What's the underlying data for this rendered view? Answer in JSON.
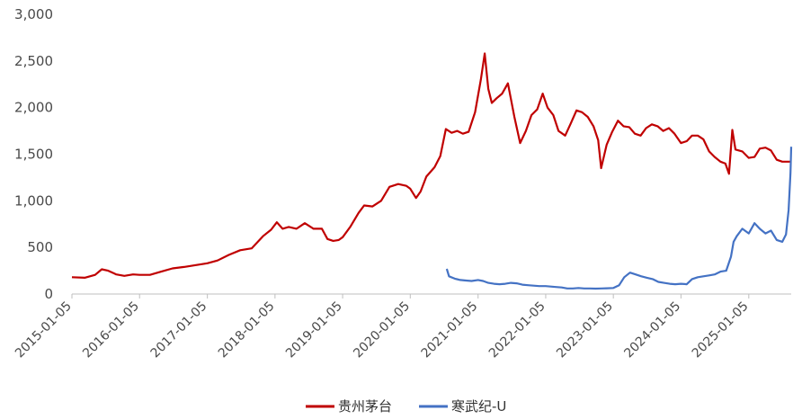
{
  "chart_data": {
    "type": "line",
    "title": "",
    "xlabel": "",
    "ylabel": "",
    "ylim": [
      0,
      3000
    ],
    "yticks": [
      "0",
      "500",
      "1,000",
      "1,500",
      "2,000",
      "2,500",
      "3,000"
    ],
    "x_range": [
      "2015-01-05",
      "2025-08-22"
    ],
    "xticks": [
      "2015-01-05",
      "2016-01-05",
      "2017-01-05",
      "2018-01-05",
      "2019-01-05",
      "2020-01-05",
      "2021-01-05",
      "2022-01-05",
      "2023-01-05",
      "2024-01-05",
      "2025-01-05"
    ],
    "grid": false,
    "legend_position": "bottom",
    "series": [
      {
        "name": "贵州茅台",
        "color": "#C00000",
        "points": [
          [
            "2015-01-05",
            180
          ],
          [
            "2015-03-15",
            175
          ],
          [
            "2015-05-10",
            205
          ],
          [
            "2015-06-15",
            265
          ],
          [
            "2015-07-20",
            250
          ],
          [
            "2015-09-01",
            210
          ],
          [
            "2015-10-15",
            195
          ],
          [
            "2015-12-01",
            210
          ],
          [
            "2016-01-05",
            205
          ],
          [
            "2016-03-01",
            205
          ],
          [
            "2016-05-01",
            240
          ],
          [
            "2016-07-01",
            275
          ],
          [
            "2016-09-01",
            290
          ],
          [
            "2016-11-01",
            310
          ],
          [
            "2017-01-05",
            330
          ],
          [
            "2017-03-01",
            360
          ],
          [
            "2017-05-01",
            420
          ],
          [
            "2017-07-01",
            470
          ],
          [
            "2017-09-01",
            490
          ],
          [
            "2017-11-01",
            620
          ],
          [
            "2017-12-15",
            690
          ],
          [
            "2018-01-15",
            770
          ],
          [
            "2018-02-15",
            700
          ],
          [
            "2018-03-20",
            720
          ],
          [
            "2018-05-01",
            700
          ],
          [
            "2018-06-15",
            760
          ],
          [
            "2018-08-01",
            700
          ],
          [
            "2018-09-15",
            700
          ],
          [
            "2018-10-15",
            590
          ],
          [
            "2018-11-15",
            570
          ],
          [
            "2018-12-15",
            580
          ],
          [
            "2019-01-05",
            610
          ],
          [
            "2019-02-15",
            720
          ],
          [
            "2019-04-01",
            870
          ],
          [
            "2019-05-01",
            950
          ],
          [
            "2019-06-15",
            940
          ],
          [
            "2019-08-01",
            1000
          ],
          [
            "2019-09-15",
            1150
          ],
          [
            "2019-11-01",
            1180
          ],
          [
            "2019-12-15",
            1160
          ],
          [
            "2020-01-05",
            1130
          ],
          [
            "2020-02-05",
            1030
          ],
          [
            "2020-03-01",
            1100
          ],
          [
            "2020-04-01",
            1260
          ],
          [
            "2020-05-15",
            1360
          ],
          [
            "2020-06-15",
            1480
          ],
          [
            "2020-07-15",
            1770
          ],
          [
            "2020-08-15",
            1730
          ],
          [
            "2020-09-15",
            1750
          ],
          [
            "2020-10-15",
            1720
          ],
          [
            "2020-11-15",
            1740
          ],
          [
            "2020-12-20",
            1950
          ],
          [
            "2021-01-20",
            2300
          ],
          [
            "2021-02-10",
            2580
          ],
          [
            "2021-03-01",
            2200
          ],
          [
            "2021-03-20",
            2050
          ],
          [
            "2021-04-15",
            2100
          ],
          [
            "2021-05-15",
            2150
          ],
          [
            "2021-06-15",
            2260
          ],
          [
            "2021-07-20",
            1900
          ],
          [
            "2021-08-20",
            1620
          ],
          [
            "2021-09-20",
            1750
          ],
          [
            "2021-10-20",
            1920
          ],
          [
            "2021-11-20",
            1980
          ],
          [
            "2021-12-20",
            2150
          ],
          [
            "2022-01-15",
            2000
          ],
          [
            "2022-02-15",
            1920
          ],
          [
            "2022-03-15",
            1750
          ],
          [
            "2022-04-20",
            1700
          ],
          [
            "2022-05-20",
            1830
          ],
          [
            "2022-06-20",
            1970
          ],
          [
            "2022-07-20",
            1950
          ],
          [
            "2022-08-20",
            1900
          ],
          [
            "2022-09-20",
            1800
          ],
          [
            "2022-10-15",
            1650
          ],
          [
            "2022-10-31",
            1350
          ],
          [
            "2022-11-30",
            1600
          ],
          [
            "2022-12-30",
            1740
          ],
          [
            "2023-01-30",
            1860
          ],
          [
            "2023-03-01",
            1800
          ],
          [
            "2023-04-01",
            1790
          ],
          [
            "2023-05-01",
            1720
          ],
          [
            "2023-06-01",
            1700
          ],
          [
            "2023-07-01",
            1780
          ],
          [
            "2023-08-01",
            1820
          ],
          [
            "2023-09-01",
            1800
          ],
          [
            "2023-10-01",
            1750
          ],
          [
            "2023-11-01",
            1780
          ],
          [
            "2023-12-01",
            1720
          ],
          [
            "2024-01-05",
            1620
          ],
          [
            "2024-02-05",
            1640
          ],
          [
            "2024-03-05",
            1700
          ],
          [
            "2024-04-05",
            1700
          ],
          [
            "2024-05-05",
            1660
          ],
          [
            "2024-06-05",
            1530
          ],
          [
            "2024-07-05",
            1470
          ],
          [
            "2024-08-05",
            1420
          ],
          [
            "2024-09-01",
            1400
          ],
          [
            "2024-09-20",
            1290
          ],
          [
            "2024-10-08",
            1760
          ],
          [
            "2024-10-25",
            1550
          ],
          [
            "2024-12-01",
            1530
          ],
          [
            "2025-01-05",
            1460
          ],
          [
            "2025-02-05",
            1470
          ],
          [
            "2025-03-05",
            1560
          ],
          [
            "2025-04-05",
            1570
          ],
          [
            "2025-05-05",
            1540
          ],
          [
            "2025-06-05",
            1440
          ],
          [
            "2025-07-05",
            1420
          ],
          [
            "2025-08-22",
            1420
          ]
        ]
      },
      {
        "name": "寒武纪-U",
        "color": "#4472C4",
        "points": [
          [
            "2020-07-20",
            270
          ],
          [
            "2020-08-01",
            190
          ],
          [
            "2020-09-01",
            165
          ],
          [
            "2020-10-01",
            150
          ],
          [
            "2020-11-01",
            145
          ],
          [
            "2020-12-01",
            140
          ],
          [
            "2021-01-05",
            150
          ],
          [
            "2021-02-01",
            140
          ],
          [
            "2021-03-01",
            120
          ],
          [
            "2021-04-01",
            110
          ],
          [
            "2021-05-01",
            105
          ],
          [
            "2021-06-01",
            110
          ],
          [
            "2021-07-01",
            120
          ],
          [
            "2021-08-01",
            115
          ],
          [
            "2021-09-01",
            100
          ],
          [
            "2021-10-01",
            95
          ],
          [
            "2021-11-01",
            90
          ],
          [
            "2021-12-01",
            85
          ],
          [
            "2022-01-05",
            85
          ],
          [
            "2022-02-01",
            80
          ],
          [
            "2022-03-01",
            75
          ],
          [
            "2022-04-01",
            70
          ],
          [
            "2022-05-01",
            60
          ],
          [
            "2022-06-01",
            60
          ],
          [
            "2022-07-01",
            65
          ],
          [
            "2022-08-01",
            60
          ],
          [
            "2022-09-01",
            60
          ],
          [
            "2022-10-01",
            58
          ],
          [
            "2022-11-01",
            60
          ],
          [
            "2022-12-01",
            62
          ],
          [
            "2023-01-05",
            65
          ],
          [
            "2023-02-05",
            95
          ],
          [
            "2023-03-05",
            180
          ],
          [
            "2023-04-05",
            230
          ],
          [
            "2023-05-05",
            210
          ],
          [
            "2023-06-05",
            190
          ],
          [
            "2023-07-05",
            175
          ],
          [
            "2023-08-05",
            160
          ],
          [
            "2023-09-05",
            130
          ],
          [
            "2023-10-05",
            120
          ],
          [
            "2023-11-05",
            110
          ],
          [
            "2023-12-05",
            105
          ],
          [
            "2024-01-05",
            110
          ],
          [
            "2024-02-05",
            105
          ],
          [
            "2024-03-05",
            160
          ],
          [
            "2024-04-05",
            180
          ],
          [
            "2024-05-05",
            190
          ],
          [
            "2024-06-05",
            200
          ],
          [
            "2024-07-05",
            210
          ],
          [
            "2024-08-05",
            240
          ],
          [
            "2024-09-05",
            250
          ],
          [
            "2024-10-01",
            400
          ],
          [
            "2024-10-15",
            560
          ],
          [
            "2024-11-01",
            620
          ],
          [
            "2024-12-01",
            700
          ],
          [
            "2025-01-05",
            650
          ],
          [
            "2025-02-05",
            760
          ],
          [
            "2025-03-05",
            700
          ],
          [
            "2025-04-05",
            650
          ],
          [
            "2025-05-05",
            680
          ],
          [
            "2025-06-05",
            580
          ],
          [
            "2025-07-05",
            560
          ],
          [
            "2025-07-25",
            640
          ],
          [
            "2025-08-08",
            900
          ],
          [
            "2025-08-18",
            1300
          ],
          [
            "2025-08-22",
            1580
          ]
        ]
      }
    ]
  }
}
